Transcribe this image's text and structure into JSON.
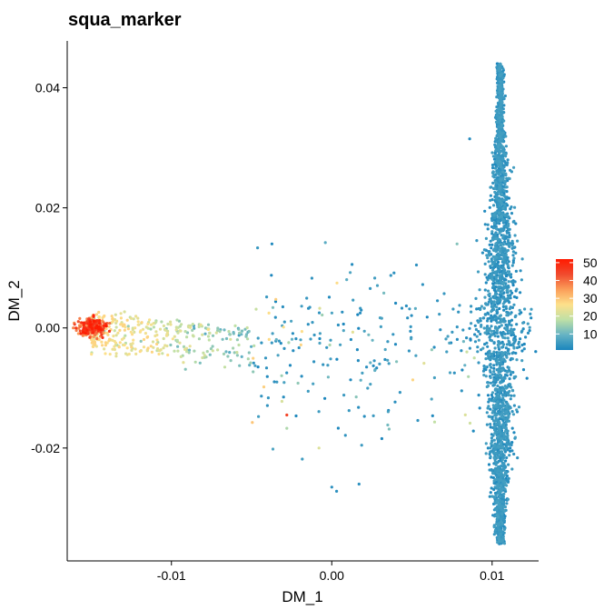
{
  "chart_data": {
    "type": "scatter",
    "title": "squa_marker",
    "xlabel": "DM_1",
    "ylabel": "DM_2",
    "xlim": [
      -0.0165,
      0.0129
    ],
    "ylim": [
      -0.0388,
      0.0478
    ],
    "x_ticks": [
      {
        "value": -0.01,
        "label": "-0.01"
      },
      {
        "value": 0.0,
        "label": "0.00"
      },
      {
        "value": 0.01,
        "label": "0.01"
      }
    ],
    "y_ticks": [
      {
        "value": -0.02,
        "label": "-0.02"
      },
      {
        "value": 0.0,
        "label": "0.00"
      },
      {
        "value": 0.02,
        "label": "0.02"
      },
      {
        "value": 0.04,
        "label": "0.04"
      }
    ],
    "grid": false,
    "legend": {
      "placement": "right",
      "min": 1,
      "max": 52,
      "ticks": [
        10,
        20,
        30,
        40,
        50
      ],
      "colors": [
        "#1a85bd",
        "#66b3c4",
        "#bfe0a6",
        "#fde08b",
        "#fb9d59",
        "#f04a2e",
        "#ff1a00"
      ]
    },
    "point_color": "#1a85bd",
    "clusters": [
      {
        "description": "vertical-band",
        "x_center": 0.0105,
        "x_spread": 0.0005,
        "y_range": [
          -0.036,
          0.044
        ],
        "value_range": [
          1,
          6
        ],
        "count": 2600
      },
      {
        "description": "left-hotspot",
        "x_center": -0.015,
        "y_center": 0.0002,
        "spread": 0.0004,
        "value_range": [
          30,
          52
        ],
        "count": 260
      },
      {
        "description": "left-arc",
        "x_range": [
          -0.015,
          -0.005
        ],
        "y_center": -0.001,
        "value_range": [
          5,
          28
        ],
        "count": 380
      },
      {
        "description": "sparse-middle",
        "x_range": [
          -0.005,
          0.0095
        ],
        "y_range": [
          -0.028,
          0.014
        ],
        "value_range": [
          1,
          30
        ],
        "count": 220
      }
    ],
    "outliers": [
      {
        "x": 0.0086,
        "y": 0.0315,
        "value": 2
      },
      {
        "x": -0.0004,
        "y": 0.0142,
        "value": 8
      },
      {
        "x": -0.0028,
        "y": -0.0145,
        "value": 45
      },
      {
        "x": -0.0008,
        "y": -0.02,
        "value": 22
      },
      {
        "x": 0.0,
        "y": -0.0265,
        "value": 3
      },
      {
        "x": 0.0017,
        "y": -0.026,
        "value": 3
      },
      {
        "x": 0.0003,
        "y": -0.0272,
        "value": 3
      }
    ]
  }
}
